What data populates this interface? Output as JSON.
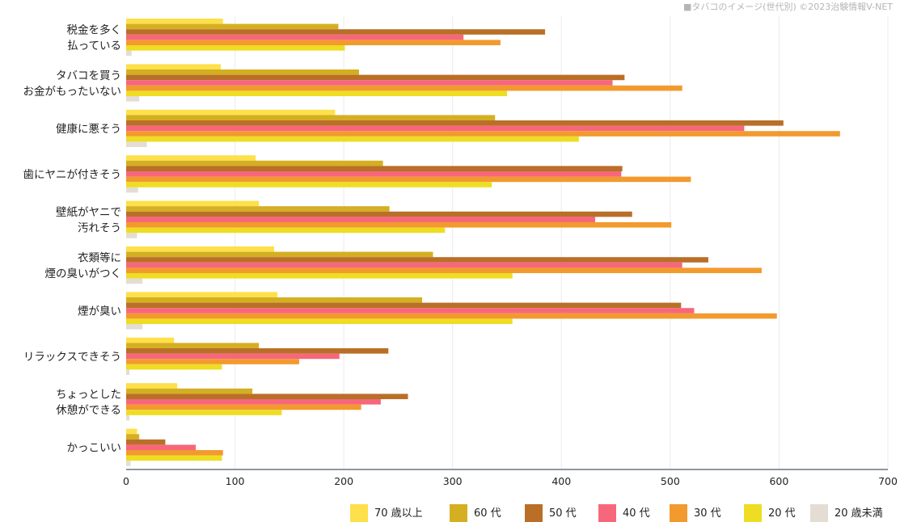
{
  "credit": "■タバコのイメージ(世代別) ©2023治験情報V-NET",
  "chart_data": {
    "type": "bar",
    "orientation": "horizontal",
    "title": "",
    "xlim": [
      0,
      700
    ],
    "xticks": [
      0,
      100,
      200,
      300,
      400,
      500,
      600,
      700
    ],
    "grid": true,
    "legend_position": "bottom-right",
    "categories": [
      [
        "税金を多く",
        "払っている"
      ],
      [
        "タバコを買う",
        "お金がもったいない"
      ],
      [
        "健康に悪そう"
      ],
      [
        "歯にヤニが付きそう"
      ],
      [
        "壁紙がヤニで",
        "汚れそう"
      ],
      [
        "衣類等に",
        "煙の臭いがつく"
      ],
      [
        "煙が臭い"
      ],
      [
        "リラックスできそう"
      ],
      [
        "ちょっとした",
        "休憩ができる"
      ],
      [
        "かっこいい"
      ]
    ],
    "series": [
      {
        "name": "70 歳以上",
        "color": "#FDE04A",
        "values": [
          89,
          87,
          192,
          119,
          122,
          136,
          139,
          44,
          47,
          10
        ]
      },
      {
        "name": "60 代",
        "color": "#D4AF22",
        "values": [
          195,
          214,
          339,
          236,
          242,
          282,
          272,
          122,
          116,
          12
        ]
      },
      {
        "name": "50 代",
        "color": "#B96F28",
        "values": [
          385,
          458,
          604,
          456,
          465,
          535,
          510,
          241,
          259,
          36
        ]
      },
      {
        "name": "40 代",
        "color": "#F7677B",
        "values": [
          310,
          447,
          568,
          455,
          431,
          511,
          522,
          196,
          234,
          64
        ]
      },
      {
        "name": "30 代",
        "color": "#F29A2E",
        "values": [
          344,
          511,
          656,
          519,
          501,
          584,
          598,
          159,
          216,
          89
        ]
      },
      {
        "name": "20 代",
        "color": "#EEDD22",
        "values": [
          201,
          350,
          416,
          336,
          293,
          355,
          355,
          88,
          143,
          88
        ]
      },
      {
        "name": "20 歳未満",
        "color": "#E3DDD4",
        "values": [
          5,
          12,
          19,
          11,
          10,
          15,
          15,
          3,
          3,
          4
        ]
      }
    ]
  }
}
